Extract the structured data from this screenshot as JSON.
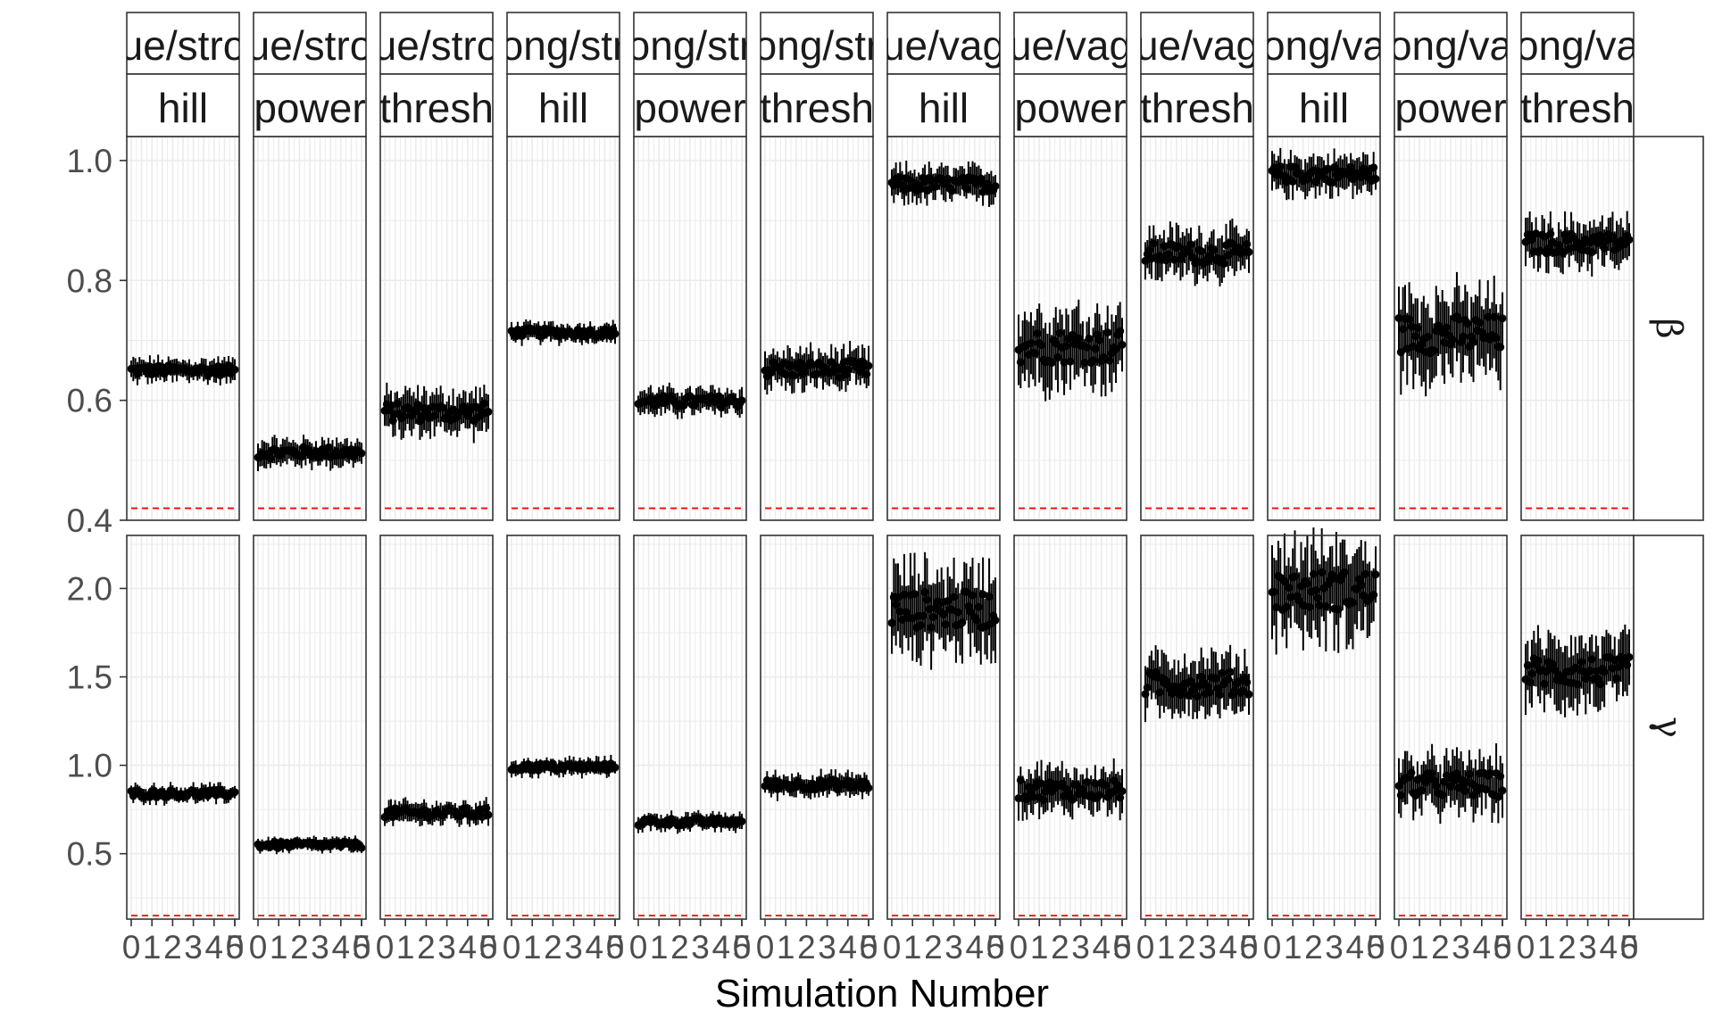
{
  "chart_data": {
    "type": "scatter",
    "description_type": "faceted point-range plot",
    "xlabel": "Simulation Number",
    "ylabel": "",
    "x_tick_labels": [
      "0",
      "1",
      "2",
      "3",
      "4",
      "5",
      "0"
    ],
    "column_facets": [
      {
        "top": "ue/stro",
        "bottom": "hill"
      },
      {
        "top": "ue/stro",
        "bottom": "power"
      },
      {
        "top": "ue/stro",
        "bottom": "thresh"
      },
      {
        "top": "ong/str",
        "bottom": "hill"
      },
      {
        "top": "ong/str",
        "bottom": "power"
      },
      {
        "top": "ong/str",
        "bottom": "thresh"
      },
      {
        "top": "ue/vag",
        "bottom": "hill"
      },
      {
        "top": "ue/vag",
        "bottom": "power"
      },
      {
        "top": "ue/vag",
        "bottom": "thresh"
      },
      {
        "top": "ong/va",
        "bottom": "hill"
      },
      {
        "top": "ong/va",
        "bottom": "power"
      },
      {
        "top": "ong/va",
        "bottom": "thresh"
      }
    ],
    "row_facets": [
      {
        "label": "β",
        "ylim": [
          0.4,
          1.04
        ],
        "yticks": [
          0.4,
          0.6,
          0.8,
          1.0
        ],
        "ytick_labels": [
          "0.4",
          "0.6",
          "0.8",
          "1.0"
        ],
        "reference_line": 0.42,
        "panel_means": [
          0.65,
          0.513,
          0.58,
          0.713,
          0.598,
          0.652,
          0.96,
          0.69,
          0.845,
          0.977,
          0.71,
          0.862
        ],
        "panel_spreads": [
          0.012,
          0.014,
          0.022,
          0.01,
          0.014,
          0.02,
          0.018,
          0.04,
          0.025,
          0.02,
          0.045,
          0.025
        ]
      },
      {
        "label": "γ",
        "ylim": [
          0.13,
          2.3
        ],
        "yticks": [
          0.5,
          1.0,
          1.5,
          2.0
        ],
        "ytick_labels": [
          "0.5",
          "1.0",
          "1.5",
          "2.0"
        ],
        "reference_line": 0.15,
        "panel_means": [
          0.84,
          0.55,
          0.73,
          0.99,
          0.68,
          0.89,
          1.88,
          0.86,
          1.46,
          1.99,
          0.89,
          1.53
        ],
        "panel_spreads": [
          0.03,
          0.025,
          0.04,
          0.03,
          0.03,
          0.04,
          0.15,
          0.08,
          0.1,
          0.16,
          0.1,
          0.12
        ]
      }
    ],
    "points_per_panel": 51,
    "colors": {
      "points": "#000000",
      "reference": "#ff0000",
      "grid": "#ebebeb",
      "strip_fill": "#ffffff"
    }
  }
}
